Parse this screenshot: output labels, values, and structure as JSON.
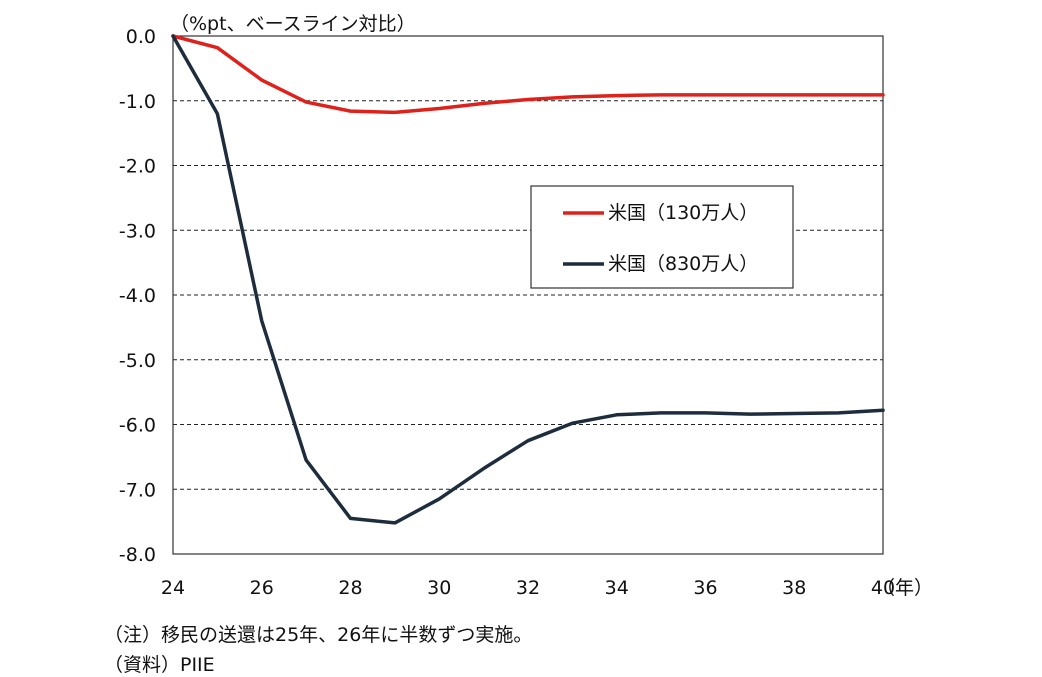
{
  "chart_data": {
    "type": "line",
    "ylabel": "（%pt、ベースライン対比）",
    "xunit": "（年）",
    "ylim": [
      -8.0,
      0.0
    ],
    "xlim": [
      24,
      40
    ],
    "yticks": [
      "0.0",
      "-1.0",
      "-2.0",
      "-3.0",
      "-4.0",
      "-5.0",
      "-6.0",
      "-7.0",
      "-8.0"
    ],
    "xticks": [
      "24",
      "26",
      "28",
      "30",
      "32",
      "34",
      "36",
      "38",
      "40"
    ],
    "grid": "horizontal dashed",
    "legend_position": "center-right",
    "x": [
      24,
      25,
      26,
      27,
      28,
      29,
      30,
      31,
      32,
      33,
      34,
      35,
      36,
      37,
      38,
      39,
      40
    ],
    "series": [
      {
        "name": "米国（130万人）",
        "color": "#e0211b",
        "values": [
          0.0,
          -0.18,
          -0.68,
          -1.02,
          -1.16,
          -1.18,
          -1.12,
          -1.04,
          -0.98,
          -0.94,
          -0.92,
          -0.91,
          -0.91,
          -0.91,
          -0.91,
          -0.91,
          -0.91
        ]
      },
      {
        "name": "米国（830万人）",
        "color": "#1e2d3d",
        "values": [
          0.0,
          -1.2,
          -4.4,
          -6.55,
          -7.45,
          -7.52,
          -7.15,
          -6.68,
          -6.25,
          -5.98,
          -5.85,
          -5.82,
          -5.82,
          -5.84,
          -5.83,
          -5.82,
          -5.78
        ]
      }
    ]
  },
  "notes": {
    "note": "（注）移民の送還は25年、26年に半数ずつ実施。",
    "source": "（資料）PIIE"
  }
}
